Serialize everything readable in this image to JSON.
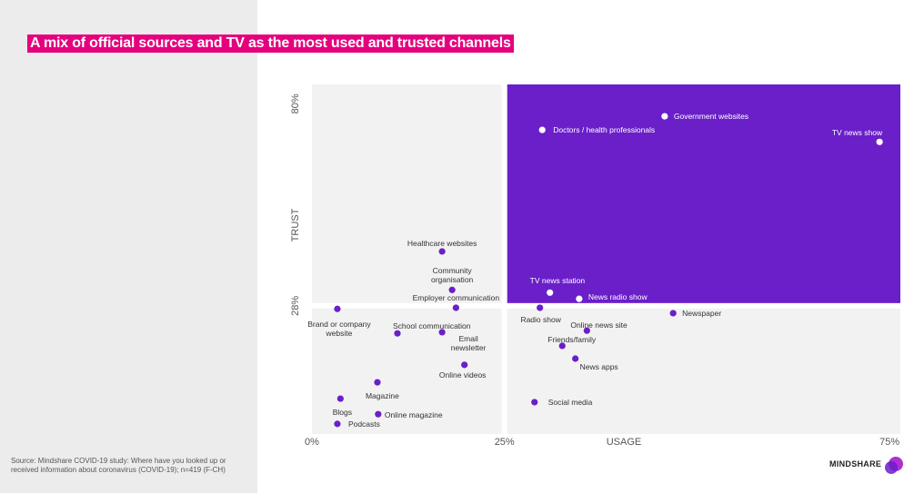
{
  "title": "A mix of official sources and TV as the most used and trusted channels",
  "source": "Source: Mindshare COVID-19 study: Where have you looked up or received information about coronavirus (COVID-19); n=419 (F-CH)",
  "brand": "MINDSHARE",
  "chart_data": {
    "type": "scatter",
    "xlabel": "USAGE",
    "ylabel": "TRUST",
    "xlim": [
      0,
      76.4
    ],
    "ylim": [
      -5,
      85
    ],
    "xticks": [
      {
        "value": 0,
        "label": "0%"
      },
      {
        "value": 25,
        "label": "25%"
      },
      {
        "value": 75,
        "label": "75%"
      }
    ],
    "yticks": [
      {
        "value": 28,
        "label": "28%"
      },
      {
        "value": 80,
        "label": "80%"
      }
    ],
    "background_color": "#f2f2f2",
    "quadrant_color": "#6a1fc9",
    "point_color": "#6a1fc9",
    "highlight_point_color": "#ffffff",
    "points": [
      {
        "name": "Government websites",
        "x": 45.8,
        "y": 76.8
      },
      {
        "name": "Doctors / health professionals",
        "x": 29.9,
        "y": 73.3
      },
      {
        "name": "TV news show",
        "x": 73.7,
        "y": 70.2
      },
      {
        "name": "Healthcare websites",
        "x": 16.9,
        "y": 42
      },
      {
        "name": "Community organisation",
        "x": 18.2,
        "y": 32.1
      },
      {
        "name": "Employer communication",
        "x": 18.7,
        "y": 27.5
      },
      {
        "name": "Brand or company website",
        "x": 3.3,
        "y": 27.2
      },
      {
        "name": "TV news station",
        "x": 30.9,
        "y": 31.4
      },
      {
        "name": "News radio show",
        "x": 34.7,
        "y": 29.8
      },
      {
        "name": "Radio show",
        "x": 29.6,
        "y": 27.5
      },
      {
        "name": "Newspaper",
        "x": 46.9,
        "y": 26.1
      },
      {
        "name": "Online news site",
        "x": 35.7,
        "y": 21.6
      },
      {
        "name": "School communication",
        "x": 11.1,
        "y": 20.9
      },
      {
        "name": "Email newsletter",
        "x": 16.9,
        "y": 21.2
      },
      {
        "name": "Friends/family",
        "x": 32.5,
        "y": 17.7
      },
      {
        "name": "News apps",
        "x": 34.2,
        "y": 14.4
      },
      {
        "name": "Online videos",
        "x": 19.8,
        "y": 12.8
      },
      {
        "name": "Magazine",
        "x": 8.5,
        "y": 8.3
      },
      {
        "name": "Blogs",
        "x": 3.7,
        "y": 4.1
      },
      {
        "name": "Social media",
        "x": 28.9,
        "y": 3.2
      },
      {
        "name": "Online magazine",
        "x": 8.6,
        "y": 0.1
      },
      {
        "name": "Podcasts",
        "x": 3.3,
        "y": -2.4
      }
    ]
  }
}
